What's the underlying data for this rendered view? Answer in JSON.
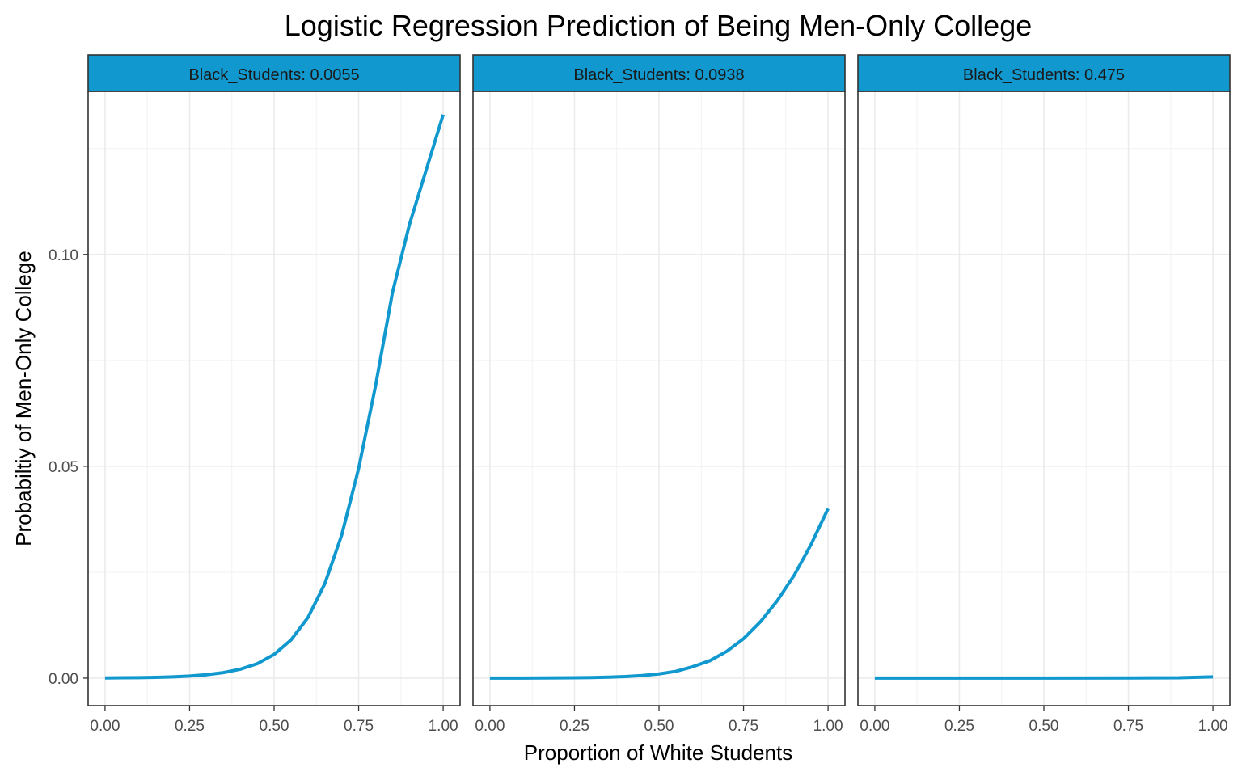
{
  "chart_data": {
    "type": "line",
    "title": "Logistic Regression Prediction of Being Men-Only College",
    "xlabel": "Proportion of White Students",
    "ylabel": "Probabiltiy of Men-Only College",
    "xlim": [
      -0.05,
      1.05
    ],
    "ylim": [
      -0.0065,
      0.1385
    ],
    "x_ticks": [
      0,
      0.25,
      0.5,
      0.75,
      1
    ],
    "x_tick_labels": [
      "0.00",
      "0.25",
      "0.50",
      "0.75",
      "1.00"
    ],
    "y_ticks": [
      0,
      0.05,
      0.1
    ],
    "y_tick_labels": [
      "0.00",
      "0.05",
      "0.10"
    ],
    "grid": true,
    "line_color": "#1199cf",
    "strip_color": "#1199cf",
    "facets": [
      {
        "label": "Black_Students: 0.0055",
        "x": [
          0,
          0.05,
          0.1,
          0.15,
          0.2,
          0.25,
          0.3,
          0.35,
          0.4,
          0.45,
          0.5,
          0.55,
          0.6,
          0.65,
          0.7,
          0.75,
          0.8,
          0.85,
          0.9,
          0.95,
          1
        ],
        "y": [
          4e-05,
          7e-05,
          0.00011,
          0.00018,
          0.0003,
          0.00048,
          0.00079,
          0.0013,
          0.0021,
          0.0034,
          0.0056,
          0.009,
          0.0143,
          0.0223,
          0.0338,
          0.0495,
          0.069,
          0.091,
          0.107,
          0.12,
          0.133
        ]
      },
      {
        "label": "Black_Students: 0.0938",
        "x": [
          0,
          0.05,
          0.1,
          0.15,
          0.2,
          0.25,
          0.3,
          0.35,
          0.4,
          0.45,
          0.5,
          0.55,
          0.6,
          0.65,
          0.7,
          0.75,
          0.8,
          0.85,
          0.9,
          0.95,
          1
        ],
        "y": [
          1e-05,
          1e-05,
          2e-05,
          3e-05,
          5e-05,
          8e-05,
          0.00013,
          0.00022,
          0.00036,
          0.0006,
          0.00099,
          0.0016,
          0.0027,
          0.0041,
          0.0063,
          0.0093,
          0.0133,
          0.0183,
          0.0243,
          0.0316,
          0.04
        ]
      },
      {
        "label": "Black_Students: 0.475",
        "x": [
          0,
          0.25,
          0.5,
          0.75,
          0.9,
          1
        ],
        "y": [
          0,
          0,
          1e-05,
          3e-05,
          8e-05,
          0.0003
        ]
      }
    ]
  }
}
